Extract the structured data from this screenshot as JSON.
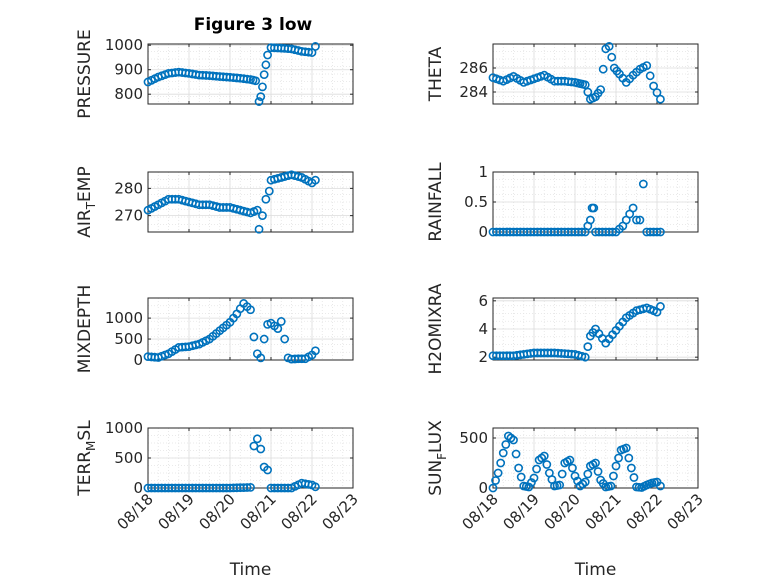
{
  "figure": {
    "title": "Figure 3 low",
    "xlabel": "Time",
    "x_ticks": [
      "08/18",
      "08/19",
      "08/20",
      "08/21",
      "08/22",
      "08/23"
    ],
    "marker_color": "#0072BD"
  },
  "chart_data": [
    {
      "type": "scatter",
      "ylabel": "PRESSURE",
      "title": "Figure 3 low",
      "yticks": [
        "800",
        "900",
        "1000"
      ],
      "ylim": [
        760,
        1005
      ],
      "xlim": [
        "08/18",
        "08/23"
      ],
      "x": [
        "08/18 00:00",
        "08/18 06:00",
        "08/18 12:00",
        "08/18 18:00",
        "08/19 00:00",
        "08/19 06:00",
        "08/19 12:00",
        "08/19 18:00",
        "08/20 00:00",
        "08/20 06:00",
        "08/20 12:00",
        "08/20 15:00",
        "08/20 17:00",
        "08/20 18:00",
        "08/20 19:00",
        "08/20 20:00",
        "08/20 21:00",
        "08/20 22:00",
        "08/21 00:00",
        "08/21 06:00",
        "08/21 12:00",
        "08/21 18:00",
        "08/22 00:00",
        "08/22 02:00"
      ],
      "y": [
        850,
        870,
        885,
        890,
        885,
        878,
        876,
        872,
        869,
        865,
        860,
        855,
        770,
        790,
        830,
        880,
        920,
        960,
        990,
        988,
        985,
        975,
        970,
        995
      ]
    },
    {
      "type": "scatter",
      "ylabel": "THETA",
      "yticks": [
        "284",
        "286"
      ],
      "ylim": [
        283.0,
        288.0
      ],
      "xlim": [
        "08/18",
        "08/23"
      ],
      "x": [
        "08/18 00:00",
        "08/18 06:00",
        "08/18 12:00",
        "08/18 18:00",
        "08/19 00:00",
        "08/19 06:00",
        "08/19 12:00",
        "08/19 18:00",
        "08/20 00:00",
        "08/20 03:00",
        "08/20 06:00",
        "08/20 09:00",
        "08/20 12:00",
        "08/20 15:00",
        "08/20 18:00",
        "08/20 20:00",
        "08/20 23:00",
        "08/21 02:00",
        "08/21 06:00",
        "08/21 10:00",
        "08/21 14:00",
        "08/21 18:00",
        "08/21 22:00",
        "08/22 02:00"
      ],
      "y": [
        285.2,
        284.9,
        285.3,
        284.8,
        285.1,
        285.4,
        284.9,
        284.9,
        284.8,
        284.7,
        284.6,
        283.4,
        283.6,
        284.2,
        287.6,
        287.8,
        286.0,
        285.5,
        284.8,
        285.4,
        285.9,
        286.2,
        284.5,
        283.4
      ]
    },
    {
      "type": "scatter",
      "ylabel": "AIR_TEMP",
      "yticks": [
        "270",
        "280"
      ],
      "ylim": [
        264,
        286
      ],
      "xlim": [
        "08/18",
        "08/23"
      ],
      "x": [
        "08/18 00:00",
        "08/18 06:00",
        "08/18 12:00",
        "08/18 18:00",
        "08/19 00:00",
        "08/19 06:00",
        "08/19 12:00",
        "08/19 18:00",
        "08/20 00:00",
        "08/20 06:00",
        "08/20 12:00",
        "08/20 16:00",
        "08/20 17:00",
        "08/20 19:00",
        "08/20 21:00",
        "08/20 23:00",
        "08/21 00:00",
        "08/21 06:00",
        "08/21 12:00",
        "08/21 18:00",
        "08/22 00:00",
        "08/22 02:00"
      ],
      "y": [
        272,
        274,
        276,
        276,
        275,
        274,
        274,
        273,
        273,
        272,
        271,
        272,
        265,
        270,
        276,
        279,
        283,
        284,
        285,
        284,
        282,
        283
      ]
    },
    {
      "type": "scatter",
      "ylabel": "RAINFALL",
      "yticks": [
        "0",
        "0.5",
        "1"
      ],
      "ylim": [
        0,
        1
      ],
      "xlim": [
        "08/18",
        "08/23"
      ],
      "x": [
        "08/18 00:00",
        "08/18 12:00",
        "08/19 00:00",
        "08/19 12:00",
        "08/20 00:00",
        "08/20 06:00",
        "08/20 09:00",
        "08/20 10:00",
        "08/20 11:00",
        "08/20 12:00",
        "08/20 18:00",
        "08/21 00:00",
        "08/21 04:00",
        "08/21 06:00",
        "08/21 08:00",
        "08/21 10:00",
        "08/21 12:00",
        "08/21 14:00",
        "08/21 16:00",
        "08/21 18:00",
        "08/22 00:00",
        "08/22 02:00"
      ],
      "y": [
        0,
        0,
        0,
        0,
        0,
        0,
        0.2,
        0.4,
        0.4,
        0,
        0,
        0,
        0.1,
        0.2,
        0.3,
        0.4,
        0.2,
        0.2,
        0.8,
        0,
        0,
        0
      ]
    },
    {
      "type": "scatter",
      "ylabel": "MIXDEPTH",
      "yticks": [
        "0",
        "500",
        "1000"
      ],
      "ylim": [
        0,
        1480
      ],
      "xlim": [
        "08/18",
        "08/23"
      ],
      "x": [
        "08/18 00:00",
        "08/18 06:00",
        "08/18 12:00",
        "08/18 18:00",
        "08/19 00:00",
        "08/19 06:00",
        "08/19 12:00",
        "08/19 18:00",
        "08/20 00:00",
        "08/20 04:00",
        "08/20 08:00",
        "08/20 12:00",
        "08/20 14:00",
        "08/20 16:00",
        "08/20 18:00",
        "08/20 20:00",
        "08/20 22:00",
        "08/21 00:00",
        "08/21 04:00",
        "08/21 06:00",
        "08/21 08:00",
        "08/21 10:00",
        "08/21 12:00",
        "08/21 16:00",
        "08/21 20:00",
        "08/22 00:00",
        "08/22 02:00"
      ],
      "y": [
        80,
        60,
        150,
        300,
        320,
        380,
        500,
        700,
        900,
        1100,
        1350,
        1200,
        550,
        150,
        50,
        500,
        850,
        880,
        750,
        920,
        500,
        50,
        20,
        30,
        30,
        120,
        220
      ]
    },
    {
      "type": "scatter",
      "ylabel": "H2OMIXRA",
      "yticks": [
        "2",
        "4",
        "6"
      ],
      "ylim": [
        1.8,
        6.2
      ],
      "xlim": [
        "08/18",
        "08/23"
      ],
      "x": [
        "08/18 00:00",
        "08/18 12:00",
        "08/19 00:00",
        "08/19 12:00",
        "08/20 00:00",
        "08/20 06:00",
        "08/20 09:00",
        "08/20 12:00",
        "08/20 18:00",
        "08/21 00:00",
        "08/21 06:00",
        "08/21 12:00",
        "08/21 18:00",
        "08/22 00:00",
        "08/22 02:00"
      ],
      "y": [
        2.1,
        2.1,
        2.3,
        2.3,
        2.2,
        2.0,
        3.5,
        4.0,
        3.0,
        3.9,
        4.8,
        5.3,
        5.5,
        5.2,
        5.6
      ]
    },
    {
      "type": "scatter",
      "ylabel": "TERR_MSL",
      "yticks": [
        "0",
        "500",
        "1000"
      ],
      "ylim": [
        0,
        1000
      ],
      "xlim": [
        "08/18",
        "08/23"
      ],
      "x": [
        "08/18 00:00",
        "08/18 12:00",
        "08/19 00:00",
        "08/19 12:00",
        "08/20 00:00",
        "08/20 12:00",
        "08/20 14:00",
        "08/20 16:00",
        "08/20 18:00",
        "08/20 20:00",
        "08/20 22:00",
        "08/21 00:00",
        "08/21 06:00",
        "08/21 12:00",
        "08/21 18:00",
        "08/22 00:00",
        "08/22 02:00"
      ],
      "y": [
        0,
        0,
        0,
        0,
        0,
        10,
        700,
        820,
        650,
        350,
        300,
        0,
        0,
        0,
        80,
        50,
        20
      ]
    },
    {
      "type": "scatter",
      "ylabel": "SUN_FLUX",
      "yticks": [
        "0",
        "500"
      ],
      "ylim": [
        0,
        600
      ],
      "xlim": [
        "08/18",
        "08/23"
      ],
      "x": [
        "08/18 00:00",
        "08/18 03:00",
        "08/18 06:00",
        "08/18 09:00",
        "08/18 12:00",
        "08/18 15:00",
        "08/18 18:00",
        "08/18 21:00",
        "08/19 00:00",
        "08/19 03:00",
        "08/19 06:00",
        "08/19 09:00",
        "08/19 12:00",
        "08/19 15:00",
        "08/19 18:00",
        "08/19 21:00",
        "08/20 00:00",
        "08/20 03:00",
        "08/20 06:00",
        "08/20 09:00",
        "08/20 12:00",
        "08/20 15:00",
        "08/20 18:00",
        "08/20 21:00",
        "08/21 00:00",
        "08/21 03:00",
        "08/21 06:00",
        "08/21 09:00",
        "08/21 12:00",
        "08/21 15:00",
        "08/21 18:00",
        "08/21 21:00",
        "08/22 00:00",
        "08/22 02:00"
      ],
      "y": [
        0,
        150,
        350,
        520,
        480,
        200,
        20,
        10,
        100,
        280,
        320,
        150,
        20,
        30,
        250,
        280,
        120,
        20,
        60,
        220,
        250,
        80,
        10,
        20,
        220,
        380,
        400,
        200,
        10,
        5,
        30,
        50,
        60,
        20
      ]
    }
  ]
}
